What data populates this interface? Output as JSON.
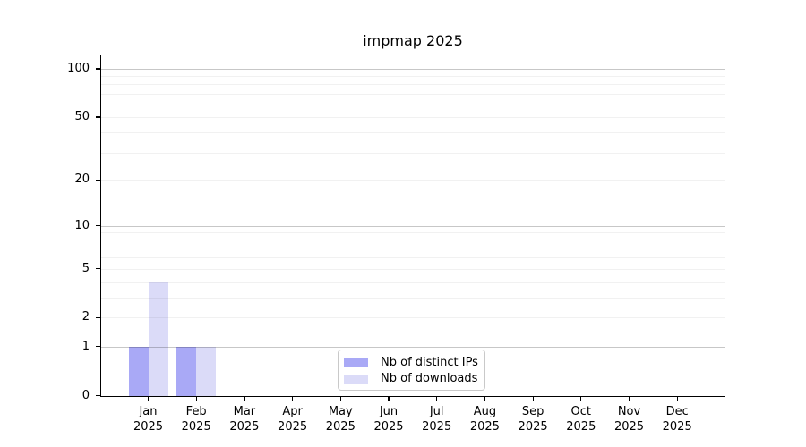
{
  "chart_data": {
    "type": "bar",
    "title": "impmap 2025",
    "categories": [
      "Jan 2025",
      "Feb 2025",
      "Mar 2025",
      "Apr 2025",
      "May 2025",
      "Jun 2025",
      "Jul 2025",
      "Aug 2025",
      "Sep 2025",
      "Oct 2025",
      "Nov 2025",
      "Dec 2025"
    ],
    "series": [
      {
        "name": "Nb of distinct IPs",
        "color": "#a9a9f6",
        "values": [
          1,
          1,
          0,
          0,
          0,
          0,
          0,
          0,
          0,
          0,
          0,
          0
        ]
      },
      {
        "name": "Nb of downloads",
        "color": "#dbdbf8",
        "values": [
          4,
          1,
          0,
          0,
          0,
          0,
          0,
          0,
          0,
          0,
          0,
          0
        ]
      }
    ],
    "xlabel": "",
    "ylabel": "",
    "yscale": "log10(1+v)",
    "ytick_labels": [
      0,
      1,
      2,
      5,
      10,
      20,
      50,
      100
    ],
    "minor_gridline_values": [
      2,
      3,
      4,
      5,
      6,
      7,
      8,
      9,
      20,
      30,
      40,
      50,
      60,
      70,
      80,
      90
    ],
    "major_gridline_values": [
      1,
      10,
      100
    ],
    "ylim": [
      0,
      110
    ],
    "grid": "horizontal",
    "legend": {
      "position": "lower-center",
      "entries": [
        "Nb of distinct IPs",
        "Nb of downloads"
      ]
    },
    "colors": {
      "distinct_ips": "#a9a9f6",
      "downloads": "#dbdbf8",
      "major_grid": "#c6c6c6",
      "minor_grid": "#ebebeb",
      "spine": "#000000",
      "background": "#ffffff"
    }
  }
}
